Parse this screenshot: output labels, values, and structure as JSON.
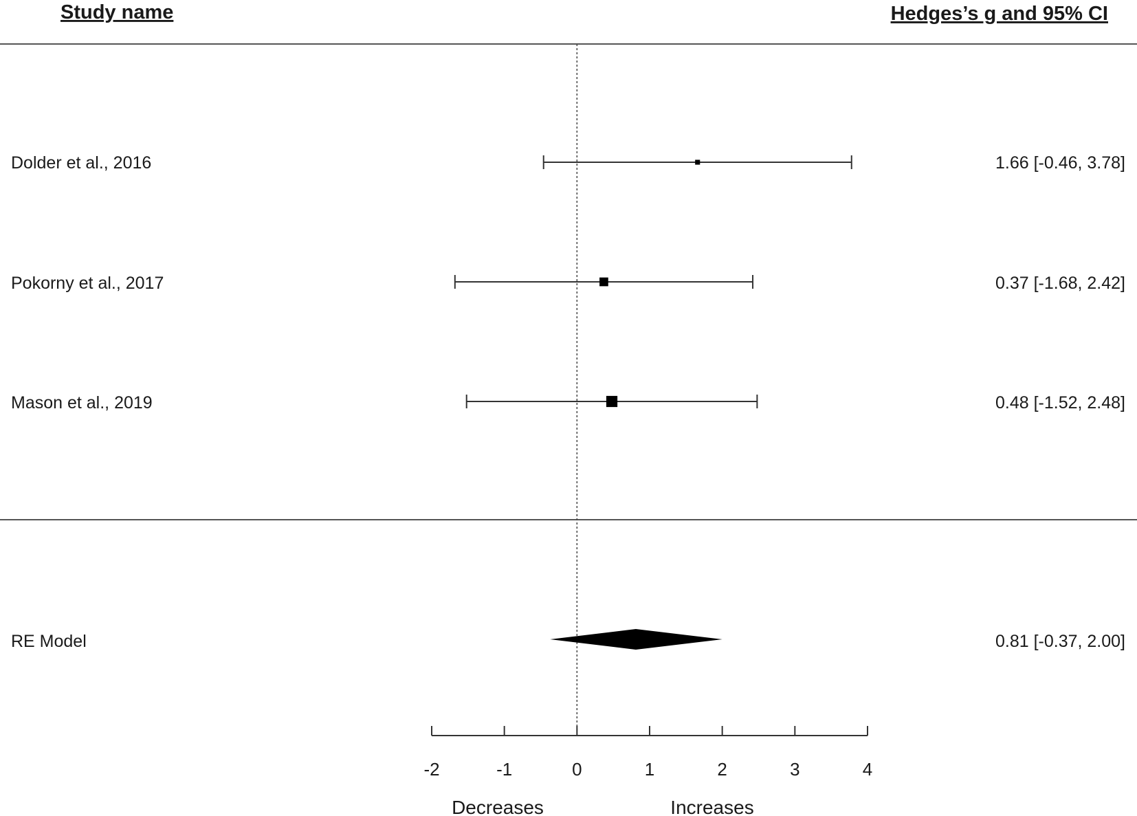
{
  "chart_data": {
    "type": "forest",
    "columns": {
      "left_header": "Study name",
      "right_header": "Hedges’s g and 95% CI"
    },
    "studies": [
      {
        "name": "Dolder et al., 2016",
        "estimate": 1.66,
        "ci_low": -0.46,
        "ci_high": 3.78,
        "label": "1.66 [-0.46, 3.78]",
        "relative_weight": 0.15
      },
      {
        "name": "Pokorny et al., 2017",
        "estimate": 0.37,
        "ci_low": -1.68,
        "ci_high": 2.42,
        "label": "0.37 [-1.68, 2.42]",
        "relative_weight": 0.55
      },
      {
        "name": "Mason et al., 2019",
        "estimate": 0.48,
        "ci_low": -1.52,
        "ci_high": 2.48,
        "label": "0.48 [-1.52, 2.48]",
        "relative_weight": 0.8
      }
    ],
    "summary": {
      "name": "RE Model",
      "estimate": 0.81,
      "ci_low": -0.37,
      "ci_high": 2.0,
      "label": "0.81 [-0.37, 2.00]"
    },
    "x_axis": {
      "range": [
        -2,
        4
      ],
      "ticks": [
        -2,
        -1,
        0,
        1,
        2,
        3,
        4
      ],
      "tick_labels": [
        "-2",
        "-1",
        "0",
        "1",
        "2",
        "3",
        "4"
      ],
      "reference_line": 0,
      "left_annotation": "Decreases",
      "right_annotation": "Increases"
    }
  }
}
